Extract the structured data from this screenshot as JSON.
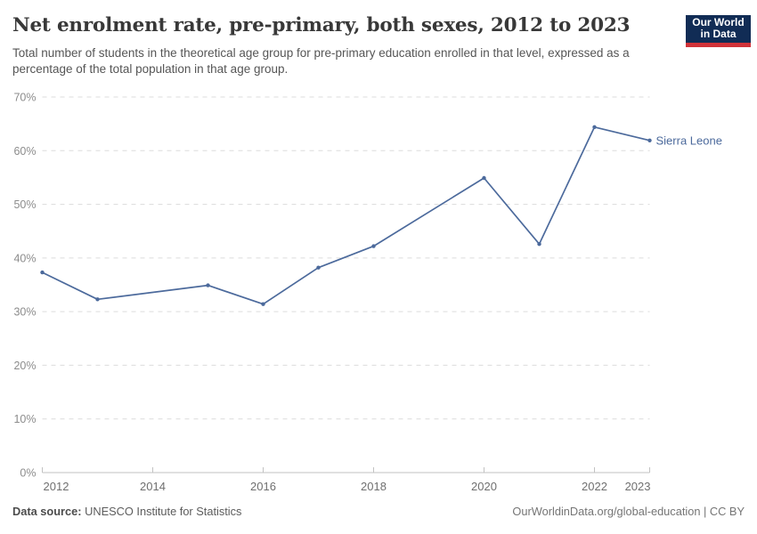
{
  "logo": {
    "line1": "Our World",
    "line2": "in Data",
    "bg_color": "#112c55",
    "accent_color": "#d13239"
  },
  "footer": {
    "source_label": "Data source:",
    "source_value": " UNESCO Institute for Statistics",
    "right": "OurWorldinData.org/global-education | CC BY"
  },
  "chart_data": {
    "type": "line",
    "title": "Net enrolment rate, pre-primary, both sexes, 2012 to 2023",
    "subtitle": "Total number of students in the theoretical age group for pre-primary education enrolled in that level, expressed as a percentage of the total population in that age group.",
    "xlabel": "",
    "ylabel": "",
    "xlim": [
      2012,
      2023
    ],
    "ylim": [
      0,
      70
    ],
    "x_ticks": [
      2012,
      2014,
      2016,
      2018,
      2020,
      2022,
      2023
    ],
    "y_ticks": [
      0,
      10,
      20,
      30,
      40,
      50,
      60,
      70
    ],
    "y_tick_suffix": "%",
    "grid": "horizontal-dashed",
    "legend_position": "end-of-line-label",
    "series": [
      {
        "name": "Sierra Leone",
        "color": "#4C6A9C",
        "points": [
          [
            2012,
            37.3
          ],
          [
            2013,
            32.3
          ],
          [
            2015,
            34.9
          ],
          [
            2016,
            31.4
          ],
          [
            2017,
            38.2
          ],
          [
            2018,
            42.2
          ],
          [
            2020,
            54.9
          ],
          [
            2021,
            42.6
          ],
          [
            2022,
            64.4
          ],
          [
            2023,
            61.9
          ]
        ]
      }
    ],
    "colors": {
      "grid": "#dcdcdc",
      "axis": "#c2c2c2",
      "y_tick_label": "#8c8c8c",
      "x_tick_label": "#6f6f6f"
    }
  }
}
